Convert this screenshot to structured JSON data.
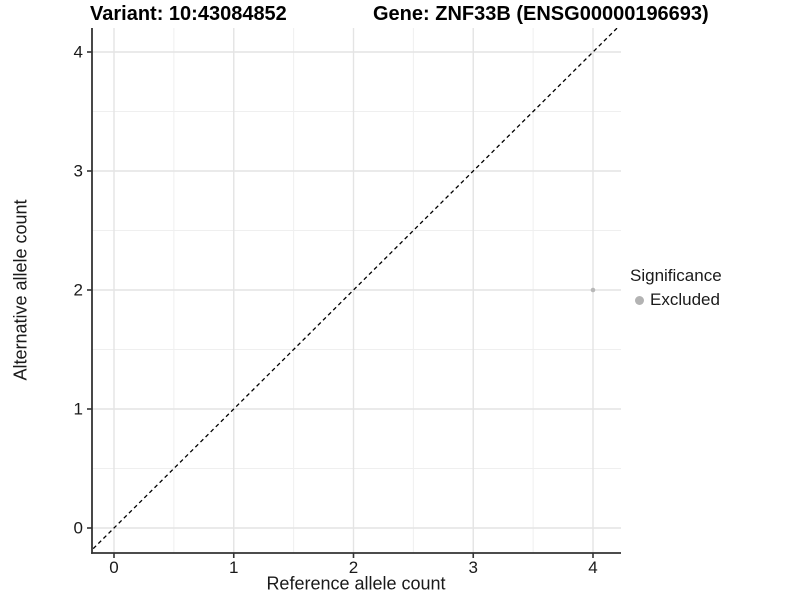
{
  "colors": {
    "background": "#ffffff",
    "grid_major": "#e4e4e4",
    "grid_minor": "#efefef",
    "axis_line": "#333333",
    "text": "#1a1a1a",
    "reference_line": "#000000",
    "point_gray": "#b8b8b8"
  },
  "chart_data": {
    "type": "scatter",
    "title_left": "Variant: 10:43084852",
    "title_right": "Gene: ZNF33B (ENSG00000196693)",
    "xlabel": "Reference allele count",
    "ylabel": "Alternative allele count",
    "xlim": [
      -0.2,
      4.2
    ],
    "ylim": [
      -0.2,
      4.2
    ],
    "xticks": [
      0,
      1,
      2,
      3,
      4
    ],
    "yticks": [
      0,
      1,
      2,
      3,
      4
    ],
    "minor_gridlines": [
      0.5,
      1.5,
      2.5,
      3.5
    ],
    "grid": true,
    "reference_line": {
      "slope": 1,
      "intercept": 0,
      "style": "dashed",
      "color": "#000000"
    },
    "series": [
      {
        "name": "Excluded",
        "color": "#b8b8b8",
        "points": [
          {
            "x": 4,
            "y": 2
          }
        ]
      }
    ],
    "legend": {
      "title": "Significance",
      "position": "right",
      "items": [
        {
          "label": "Excluded",
          "color": "#b3b3b3"
        }
      ]
    }
  }
}
